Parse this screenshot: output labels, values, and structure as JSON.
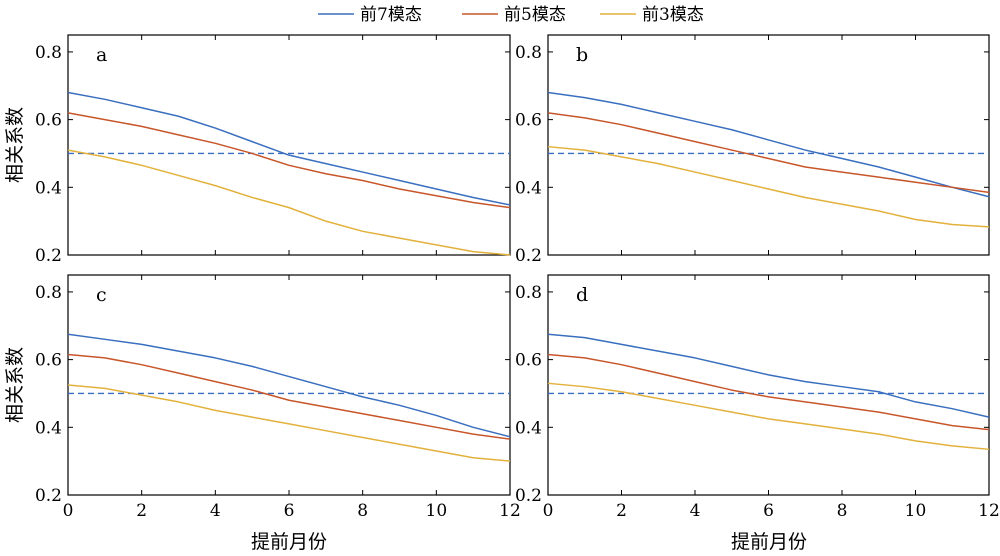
{
  "legend": {
    "entries": [
      {
        "label": "前7模态",
        "color": "#3a6fbf"
      },
      {
        "label": "前5模态",
        "color": "#c7562a"
      },
      {
        "label": "前3模态",
        "color": "#e2b13c"
      }
    ]
  },
  "y_axis_title": "相关系数",
  "x_axis_title": "提前月份",
  "reference_line": {
    "y": 0.5,
    "color": "#3a6fbf",
    "style": "dashed"
  },
  "chart_data": [
    {
      "type": "line",
      "panel": "a",
      "xlabel": "提前月份",
      "ylabel": "相关系数",
      "xlim": [
        0,
        12
      ],
      "ylim": [
        0.2,
        0.85
      ],
      "xticks": [
        0,
        2,
        4,
        6,
        8,
        10,
        12
      ],
      "yticks": [
        0.2,
        0.4,
        0.6,
        0.8
      ],
      "x": [
        0,
        1,
        2,
        3,
        4,
        5,
        6,
        7,
        8,
        9,
        10,
        11,
        12
      ],
      "series": [
        {
          "name": "前7模态",
          "values": [
            0.68,
            0.66,
            0.635,
            0.61,
            0.575,
            0.535,
            0.495,
            0.47,
            0.445,
            0.42,
            0.395,
            0.37,
            0.348
          ]
        },
        {
          "name": "前5模态",
          "values": [
            0.62,
            0.6,
            0.58,
            0.555,
            0.53,
            0.5,
            0.465,
            0.44,
            0.42,
            0.395,
            0.375,
            0.355,
            0.34
          ]
        },
        {
          "name": "前3模态",
          "values": [
            0.51,
            0.49,
            0.465,
            0.435,
            0.405,
            0.37,
            0.34,
            0.3,
            0.27,
            0.25,
            0.23,
            0.21,
            0.2
          ]
        }
      ]
    },
    {
      "type": "line",
      "panel": "b",
      "xlabel": "提前月份",
      "ylabel": "相关系数",
      "xlim": [
        0,
        12
      ],
      "ylim": [
        0.2,
        0.85
      ],
      "xticks": [
        0,
        2,
        4,
        6,
        8,
        10,
        12
      ],
      "yticks": [
        0.2,
        0.4,
        0.6,
        0.8
      ],
      "x": [
        0,
        1,
        2,
        3,
        4,
        5,
        6,
        7,
        8,
        9,
        10,
        11,
        12
      ],
      "series": [
        {
          "name": "前7模态",
          "values": [
            0.68,
            0.665,
            0.645,
            0.62,
            0.595,
            0.57,
            0.54,
            0.51,
            0.485,
            0.46,
            0.43,
            0.4,
            0.372
          ]
        },
        {
          "name": "前5模态",
          "values": [
            0.62,
            0.605,
            0.585,
            0.56,
            0.535,
            0.51,
            0.485,
            0.46,
            0.445,
            0.43,
            0.415,
            0.4,
            0.385
          ]
        },
        {
          "name": "前3模态",
          "values": [
            0.52,
            0.51,
            0.49,
            0.47,
            0.445,
            0.42,
            0.395,
            0.37,
            0.35,
            0.33,
            0.305,
            0.29,
            0.283
          ]
        }
      ]
    },
    {
      "type": "line",
      "panel": "c",
      "xlabel": "提前月份",
      "ylabel": "相关系数",
      "xlim": [
        0,
        12
      ],
      "ylim": [
        0.2,
        0.85
      ],
      "xticks": [
        0,
        2,
        4,
        6,
        8,
        10,
        12
      ],
      "yticks": [
        0.2,
        0.4,
        0.6,
        0.8
      ],
      "x": [
        0,
        1,
        2,
        3,
        4,
        5,
        6,
        7,
        8,
        9,
        10,
        11,
        12
      ],
      "series": [
        {
          "name": "前7模态",
          "values": [
            0.675,
            0.66,
            0.645,
            0.625,
            0.605,
            0.58,
            0.55,
            0.52,
            0.49,
            0.465,
            0.435,
            0.4,
            0.372
          ]
        },
        {
          "name": "前5模态",
          "values": [
            0.615,
            0.605,
            0.585,
            0.56,
            0.535,
            0.51,
            0.48,
            0.46,
            0.44,
            0.42,
            0.4,
            0.38,
            0.365
          ]
        },
        {
          "name": "前3模态",
          "values": [
            0.525,
            0.515,
            0.495,
            0.475,
            0.45,
            0.43,
            0.41,
            0.39,
            0.37,
            0.35,
            0.33,
            0.31,
            0.3
          ]
        }
      ]
    },
    {
      "type": "line",
      "panel": "d",
      "xlabel": "提前月份",
      "ylabel": "相关系数",
      "xlim": [
        0,
        12
      ],
      "ylim": [
        0.2,
        0.85
      ],
      "xticks": [
        0,
        2,
        4,
        6,
        8,
        10,
        12
      ],
      "yticks": [
        0.2,
        0.4,
        0.6,
        0.8
      ],
      "x": [
        0,
        1,
        2,
        3,
        4,
        5,
        6,
        7,
        8,
        9,
        10,
        11,
        12
      ],
      "series": [
        {
          "name": "前7模态",
          "values": [
            0.675,
            0.665,
            0.645,
            0.625,
            0.605,
            0.58,
            0.555,
            0.535,
            0.52,
            0.505,
            0.475,
            0.455,
            0.43
          ]
        },
        {
          "name": "前5模态",
          "values": [
            0.615,
            0.605,
            0.585,
            0.56,
            0.535,
            0.51,
            0.49,
            0.475,
            0.46,
            0.445,
            0.425,
            0.405,
            0.393
          ]
        },
        {
          "name": "前3模态",
          "values": [
            0.53,
            0.52,
            0.505,
            0.485,
            0.465,
            0.445,
            0.425,
            0.41,
            0.395,
            0.38,
            0.36,
            0.345,
            0.335
          ]
        }
      ]
    }
  ]
}
